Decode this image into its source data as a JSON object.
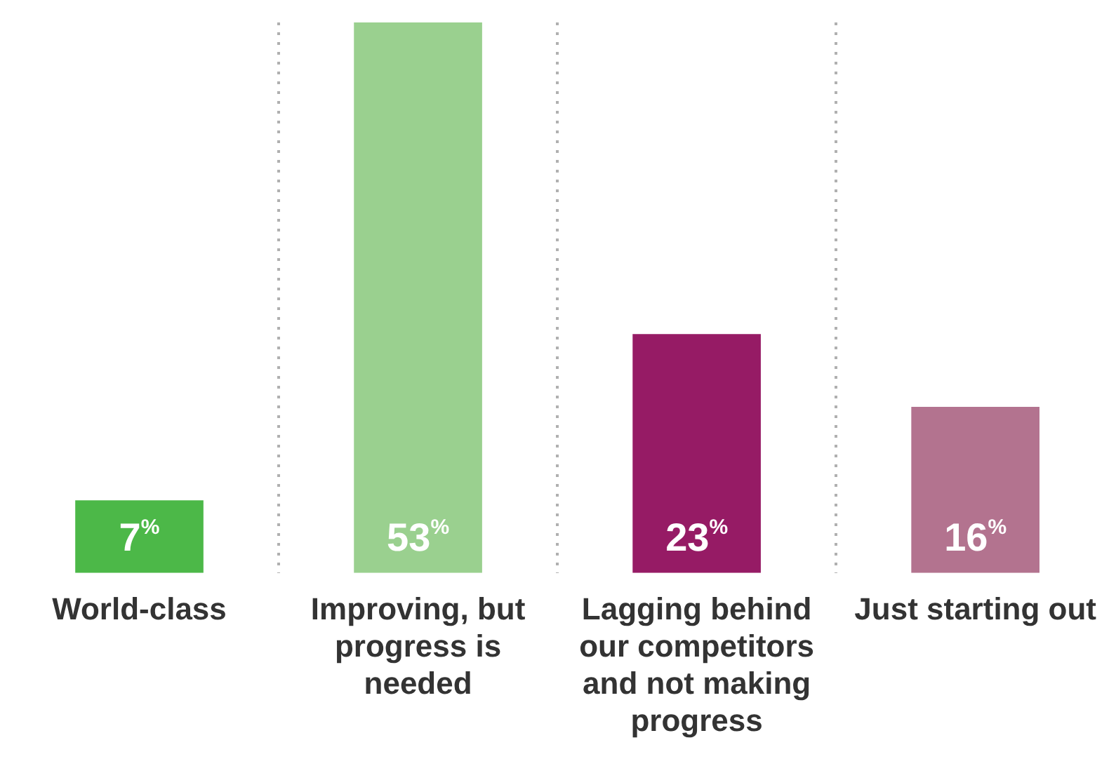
{
  "chart_data": {
    "type": "bar",
    "categories": [
      "World-class",
      "Improving, but progress is needed",
      "Lagging behind our competitors and not making progress",
      "Just starting out"
    ],
    "values": [
      7,
      53,
      23,
      16
    ],
    "colors": [
      "#4cb848",
      "#9ad08f",
      "#961b65",
      "#b3738f"
    ],
    "value_labels": [
      "7$^{%}$",
      "53$^{%}$",
      "23$^{%}$",
      "16$^{%}$"
    ],
    "ylim": [
      0,
      53
    ],
    "grid": "x",
    "legend": false
  }
}
